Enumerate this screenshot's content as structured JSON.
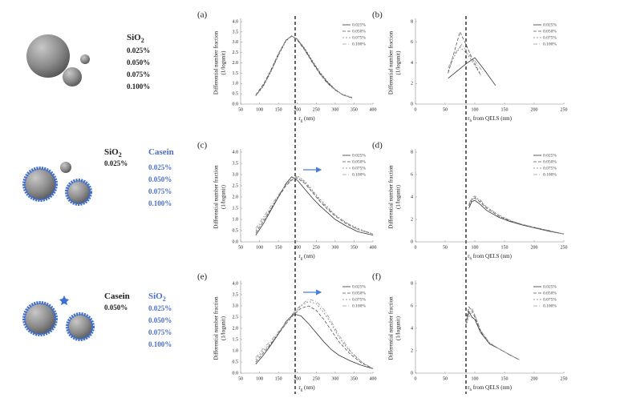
{
  "illustration": {
    "groups": [
      {
        "varied": {
          "text": "SiO",
          "sub": "2"
        },
        "levels": [
          "0.025%",
          "0.050%",
          "0.075%",
          "0.100%"
        ]
      },
      {
        "fixed": {
          "text": "SiO",
          "sub": "2"
        },
        "fixed_level": "0.025%",
        "varied": {
          "text": "Casein"
        },
        "levels": [
          "0.025%",
          "0.050%",
          "0.075%",
          "0.100%"
        ]
      },
      {
        "fixed": {
          "text": "Casein"
        },
        "fixed_level": "0.050%",
        "varied": {
          "text": "SiO",
          "sub": "2"
        },
        "levels": [
          "0.025%",
          "0.050%",
          "0.075%",
          "0.100%"
        ]
      }
    ]
  },
  "chart_data": [
    {
      "type": "line",
      "label": "(a)",
      "y_label": [
        "Differential number fraction",
        "(1/logunit)"
      ],
      "x_label": {
        "main": "r",
        "sub": "g",
        "rest": " (nm)"
      },
      "xlim": [
        50,
        400
      ],
      "xticks": [
        50,
        100,
        150,
        200,
        250,
        300,
        350,
        400
      ],
      "ylim": [
        0,
        4
      ],
      "yticks": [
        {
          "value": 0,
          "label": "0.0"
        },
        0.5,
        {
          "value": 1,
          "label": "1.0"
        },
        1.5,
        {
          "value": 2,
          "label": "2.0"
        },
        2.5,
        {
          "value": 3,
          "label": "3.0"
        },
        3.5,
        {
          "value": 4,
          "label": "4.0"
        }
      ],
      "legend": "upper right",
      "series": [
        {
          "name": "0.025%",
          "color": "#333333",
          "dash": "",
          "x": [
            90,
            110,
            130,
            150,
            170,
            185,
            200,
            220,
            240,
            260,
            280,
            300,
            320,
            345
          ],
          "values": [
            0.4,
            0.9,
            1.6,
            2.4,
            3.1,
            3.3,
            3.15,
            2.65,
            2.05,
            1.5,
            1.05,
            0.7,
            0.45,
            0.3
          ]
        },
        {
          "name": "0.050%",
          "color": "#555555",
          "dash": "4 2",
          "x": [
            90,
            110,
            130,
            150,
            170,
            185,
            200,
            220,
            240,
            260,
            280,
            300,
            320,
            345
          ],
          "values": [
            0.45,
            0.95,
            1.65,
            2.45,
            3.1,
            3.3,
            3.1,
            2.6,
            2.0,
            1.45,
            1.0,
            0.68,
            0.45,
            0.3
          ]
        },
        {
          "name": "0.075%",
          "color": "#777777",
          "dash": "2 2",
          "x": [
            90,
            110,
            130,
            150,
            170,
            185,
            200,
            220,
            240,
            260,
            280,
            300,
            320,
            345
          ],
          "values": [
            0.4,
            0.85,
            1.55,
            2.35,
            3.05,
            3.3,
            3.15,
            2.7,
            2.1,
            1.55,
            1.1,
            0.72,
            0.47,
            0.32
          ]
        },
        {
          "name": "0.100%",
          "color": "#999999",
          "dash": "5 2 1 2",
          "x": [
            90,
            110,
            130,
            150,
            170,
            185,
            200,
            220,
            240,
            260,
            280,
            300,
            320,
            345
          ],
          "values": [
            0.42,
            0.9,
            1.6,
            2.4,
            3.1,
            3.32,
            3.12,
            2.62,
            2.02,
            1.48,
            1.02,
            0.69,
            0.45,
            0.3
          ]
        }
      ]
    },
    {
      "type": "line",
      "label": "(b)",
      "y_label": [
        "Differential number fraction",
        "(1/logunit)"
      ],
      "x_label": {
        "main": "r",
        "sub": "h",
        "rest": " from QELS (nm)"
      },
      "xlim": [
        0,
        250
      ],
      "xticks": [
        0,
        50,
        100,
        150,
        200,
        250
      ],
      "ylim": [
        0,
        8
      ],
      "yticks": [
        0,
        2,
        4,
        6,
        8
      ],
      "legend": "upper right",
      "series": [
        {
          "name": "0.025%",
          "color": "#333333",
          "dash": "",
          "x": [
            55,
            70,
            85,
            100,
            115,
            135
          ],
          "values": [
            2.5,
            3.2,
            3.9,
            4.5,
            3.4,
            1.8
          ]
        },
        {
          "name": "0.050%",
          "color": "#555555",
          "dash": "4 2",
          "x": [
            55,
            65,
            75,
            85,
            95,
            110
          ],
          "values": [
            3.0,
            5.0,
            7.0,
            5.8,
            4.5,
            2.8
          ]
        },
        {
          "name": "0.075%",
          "color": "#777777",
          "dash": "2 2",
          "x": [
            55,
            65,
            75,
            85,
            95,
            110
          ],
          "values": [
            3.2,
            4.6,
            5.5,
            5.0,
            4.2,
            2.8
          ]
        },
        {
          "name": "0.100%",
          "color": "#999999",
          "dash": "5 2 1 2",
          "x": [
            55,
            65,
            78,
            90,
            100,
            115
          ],
          "values": [
            3.5,
            4.8,
            5.8,
            4.8,
            4.2,
            3.0
          ]
        }
      ]
    },
    {
      "type": "line",
      "label": "(c)",
      "y_label": [
        "Differential number fraction",
        "(1/logunit)"
      ],
      "x_label": {
        "main": "r",
        "sub": "g",
        "rest": " (nm)"
      },
      "xlim": [
        50,
        400
      ],
      "xticks": [
        50,
        100,
        150,
        200,
        250,
        300,
        350,
        400
      ],
      "ylim": [
        0,
        4
      ],
      "yticks": [
        {
          "value": 0,
          "label": "0.0"
        },
        0.5,
        {
          "value": 1,
          "label": "1.0"
        },
        1.5,
        {
          "value": 2,
          "label": "2.0"
        },
        2.5,
        {
          "value": 3,
          "label": "3.0"
        },
        3.5,
        {
          "value": 4,
          "label": "4.0"
        }
      ],
      "legend": "upper right",
      "series": [
        {
          "name": "0.025%",
          "color": "#333333",
          "dash": "",
          "x": [
            90,
            110,
            130,
            150,
            170,
            185,
            200,
            220,
            240,
            260,
            280,
            300,
            330,
            360,
            400
          ],
          "values": [
            0.3,
            0.8,
            1.4,
            2.0,
            2.6,
            2.9,
            2.75,
            2.35,
            1.95,
            1.6,
            1.3,
            1.0,
            0.7,
            0.45,
            0.3
          ]
        },
        {
          "name": "0.050%",
          "color": "#555555",
          "dash": "4 2",
          "x": [
            90,
            110,
            130,
            150,
            170,
            185,
            200,
            220,
            240,
            260,
            280,
            300,
            330,
            360,
            400
          ],
          "values": [
            0.4,
            0.9,
            1.45,
            2.0,
            2.5,
            2.75,
            2.85,
            2.6,
            2.2,
            1.8,
            1.45,
            1.15,
            0.8,
            0.55,
            0.35
          ]
        },
        {
          "name": "0.075%",
          "color": "#777777",
          "dash": "2 2",
          "x": [
            90,
            110,
            130,
            150,
            170,
            185,
            200,
            220,
            240,
            260,
            280,
            300,
            330,
            360,
            400
          ],
          "values": [
            0.5,
            1.0,
            1.5,
            2.05,
            2.55,
            2.8,
            2.95,
            2.7,
            2.3,
            1.9,
            1.55,
            1.2,
            0.85,
            0.6,
            0.35
          ]
        },
        {
          "name": "0.100%",
          "color": "#999999",
          "dash": "5 2 1 2",
          "x": [
            90,
            110,
            130,
            150,
            170,
            185,
            200,
            220,
            240,
            260,
            280,
            300,
            330,
            360,
            400
          ],
          "values": [
            0.6,
            1.1,
            1.6,
            2.1,
            2.55,
            2.8,
            2.9,
            2.65,
            2.25,
            1.85,
            1.5,
            1.2,
            0.85,
            0.55,
            0.35
          ]
        }
      ]
    },
    {
      "type": "line",
      "label": "(d)",
      "y_label": [
        "Differential number fraction",
        "(1/logunit)"
      ],
      "x_label": {
        "main": "r",
        "sub": "h",
        "rest": " from QELS (nm)"
      },
      "xlim": [
        0,
        250
      ],
      "xticks": [
        0,
        50,
        100,
        150,
        200,
        250
      ],
      "ylim": [
        0,
        8
      ],
      "yticks": [
        0,
        2,
        4,
        6,
        8
      ],
      "legend": "upper right",
      "series": [
        {
          "name": "0.025%",
          "color": "#333333",
          "dash": "",
          "x": [
            90,
            95,
            100,
            110,
            120,
            140,
            160,
            180,
            200,
            225,
            250
          ],
          "values": [
            3.0,
            3.6,
            3.7,
            3.3,
            2.8,
            2.2,
            1.8,
            1.5,
            1.25,
            0.95,
            0.7
          ]
        },
        {
          "name": "0.050%",
          "color": "#555555",
          "dash": "4 2",
          "x": [
            90,
            95,
            100,
            110,
            120,
            140,
            160,
            180,
            200,
            225,
            250
          ],
          "values": [
            3.2,
            3.8,
            3.9,
            3.5,
            3.0,
            2.3,
            1.85,
            1.55,
            1.3,
            1.0,
            0.7
          ]
        },
        {
          "name": "0.075%",
          "color": "#777777",
          "dash": "2 2",
          "x": [
            90,
            95,
            100,
            110,
            120,
            140,
            160,
            180,
            200,
            225,
            250
          ],
          "values": [
            3.3,
            3.7,
            4.0,
            3.6,
            3.1,
            2.4,
            1.9,
            1.55,
            1.3,
            1.0,
            0.7
          ]
        },
        {
          "name": "0.100%",
          "color": "#999999",
          "dash": "5 2 1 2",
          "x": [
            90,
            95,
            100,
            110,
            120,
            140,
            160,
            180,
            200,
            225,
            250
          ],
          "values": [
            3.4,
            3.9,
            4.1,
            3.7,
            3.1,
            2.4,
            1.9,
            1.55,
            1.3,
            1.0,
            0.7
          ]
        }
      ]
    },
    {
      "type": "line",
      "label": "(e)",
      "y_label": [
        "Differential number fraction",
        "(1/logunit)"
      ],
      "x_label": {
        "main": "r",
        "sub": "g",
        "rest": " (nm)"
      },
      "xlim": [
        50,
        400
      ],
      "xticks": [
        50,
        100,
        150,
        200,
        250,
        300,
        350,
        400
      ],
      "ylim": [
        0,
        4
      ],
      "yticks": [
        {
          "value": 0,
          "label": "0.0"
        },
        0.5,
        {
          "value": 1,
          "label": "1.0"
        },
        1.5,
        {
          "value": 2,
          "label": "2.0"
        },
        2.5,
        {
          "value": 3,
          "label": "3.0"
        },
        3.5,
        {
          "value": 4,
          "label": "4.0"
        }
      ],
      "legend": "upper right",
      "series": [
        {
          "name": "0.025%",
          "color": "#333333",
          "dash": "",
          "x": [
            90,
            110,
            130,
            150,
            170,
            190,
            210,
            230,
            250,
            270,
            290,
            310,
            340,
            370,
            400
          ],
          "values": [
            0.4,
            0.8,
            1.25,
            1.75,
            2.3,
            2.65,
            2.55,
            2.2,
            1.8,
            1.4,
            1.05,
            0.8,
            0.55,
            0.35,
            0.2
          ]
        },
        {
          "name": "0.050%",
          "color": "#555555",
          "dash": "4 2",
          "x": [
            90,
            110,
            130,
            150,
            170,
            190,
            210,
            230,
            250,
            270,
            290,
            310,
            340,
            370,
            400
          ],
          "values": [
            0.5,
            0.9,
            1.3,
            1.75,
            2.2,
            2.6,
            2.9,
            3.0,
            2.8,
            2.4,
            1.9,
            1.4,
            0.85,
            0.45,
            0.2
          ]
        },
        {
          "name": "0.075%",
          "color": "#777777",
          "dash": "2 2",
          "x": [
            90,
            110,
            130,
            150,
            170,
            190,
            210,
            230,
            250,
            270,
            290,
            310,
            340,
            370,
            400
          ],
          "values": [
            0.6,
            1.0,
            1.35,
            1.8,
            2.2,
            2.65,
            3.0,
            3.2,
            3.1,
            2.7,
            2.2,
            1.6,
            0.95,
            0.5,
            0.2
          ]
        },
        {
          "name": "0.100%",
          "color": "#999999",
          "dash": "5 2 1 2",
          "x": [
            90,
            110,
            130,
            150,
            170,
            190,
            210,
            230,
            250,
            270,
            290,
            310,
            340,
            370,
            400
          ],
          "values": [
            0.7,
            1.1,
            1.45,
            1.85,
            2.25,
            2.7,
            3.05,
            3.3,
            3.2,
            2.85,
            2.3,
            1.7,
            1.0,
            0.5,
            0.2
          ]
        }
      ]
    },
    {
      "type": "line",
      "label": "(f)",
      "y_label": [
        "Differential number fraction",
        "(1/logunit)"
      ],
      "x_label": {
        "main": "r",
        "sub": "h",
        "rest": " from QELS (nm)"
      },
      "xlim": [
        0,
        250
      ],
      "xticks": [
        0,
        50,
        100,
        150,
        200,
        250
      ],
      "ylim": [
        0,
        8
      ],
      "yticks": [
        0,
        2,
        4,
        6,
        8
      ],
      "legend": "upper right",
      "series": [
        {
          "name": "0.025%",
          "color": "#333333",
          "dash": "",
          "x": [
            85,
            90,
            95,
            100,
            110,
            125,
            140,
            160,
            175
          ],
          "values": [
            4.4,
            5.5,
            5.0,
            4.8,
            3.6,
            2.6,
            2.2,
            1.6,
            1.2
          ]
        },
        {
          "name": "0.050%",
          "color": "#555555",
          "dash": "4 2",
          "x": [
            85,
            90,
            95,
            100,
            110,
            125,
            140,
            160,
            175
          ],
          "values": [
            4.6,
            5.9,
            5.6,
            5.0,
            3.7,
            2.6,
            2.2,
            1.6,
            1.2
          ]
        },
        {
          "name": "0.075%",
          "color": "#777777",
          "dash": "2 2",
          "x": [
            85,
            90,
            95,
            100,
            110,
            125,
            140,
            160,
            175
          ],
          "values": [
            4.2,
            5.0,
            5.5,
            5.2,
            3.8,
            2.7,
            2.2,
            1.6,
            1.2
          ]
        },
        {
          "name": "0.100%",
          "color": "#999999",
          "dash": "5 2 1 2",
          "x": [
            85,
            90,
            95,
            100,
            110,
            125,
            140,
            160,
            175
          ],
          "values": [
            4.5,
            5.3,
            5.8,
            5.2,
            3.8,
            2.7,
            2.2,
            1.6,
            1.2
          ]
        }
      ]
    }
  ]
}
